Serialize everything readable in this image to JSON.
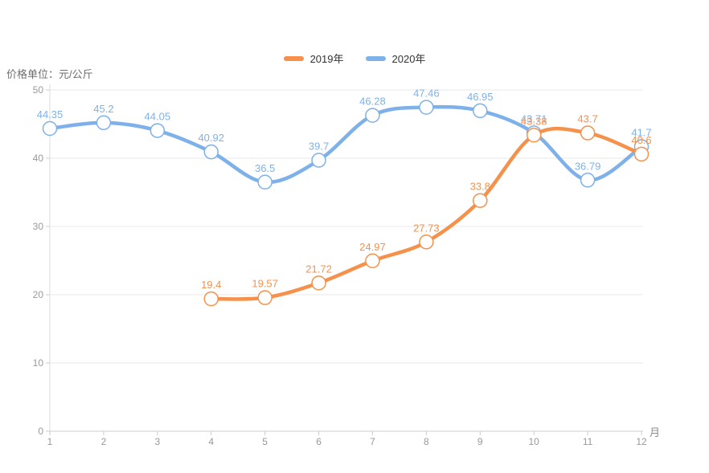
{
  "unit_label": "价格单位：元/公斤",
  "legend": {
    "items": [
      {
        "label": "2019年",
        "color": "#f6914c"
      },
      {
        "label": "2020年",
        "color": "#7eb1ea"
      }
    ]
  },
  "chart_data": {
    "type": "line",
    "title": "",
    "xlabel": "月",
    "ylabel": "价格单位：元/公斤",
    "x_ticks": [
      1,
      2,
      3,
      4,
      5,
      6,
      7,
      8,
      9,
      10,
      11,
      12
    ],
    "yticks": [
      0,
      10,
      20,
      30,
      40,
      50
    ],
    "ylim": [
      0,
      50
    ],
    "grid": true,
    "smooth": true,
    "legend_position": "top-center",
    "marker": "empty-circle",
    "axis_label_color": "#999999",
    "grid_color": "#e9e9e9",
    "axis_line_color": "#cccccc",
    "series": [
      {
        "name": "2020年",
        "color": "#7eb1ea",
        "months": [
          1,
          2,
          3,
          4,
          5,
          6,
          7,
          8,
          9,
          10,
          11,
          12
        ],
        "values": [
          44.35,
          45.2,
          44.05,
          40.92,
          36.5,
          39.7,
          46.28,
          47.46,
          46.95,
          43.71,
          36.79,
          41.7
        ]
      },
      {
        "name": "2019年",
        "color": "#f6914c",
        "months": [
          4,
          5,
          6,
          7,
          8,
          9,
          10,
          11,
          12
        ],
        "values": [
          19.4,
          19.57,
          21.72,
          24.97,
          27.73,
          33.8,
          43.38,
          43.7,
          40.6
        ]
      }
    ]
  }
}
